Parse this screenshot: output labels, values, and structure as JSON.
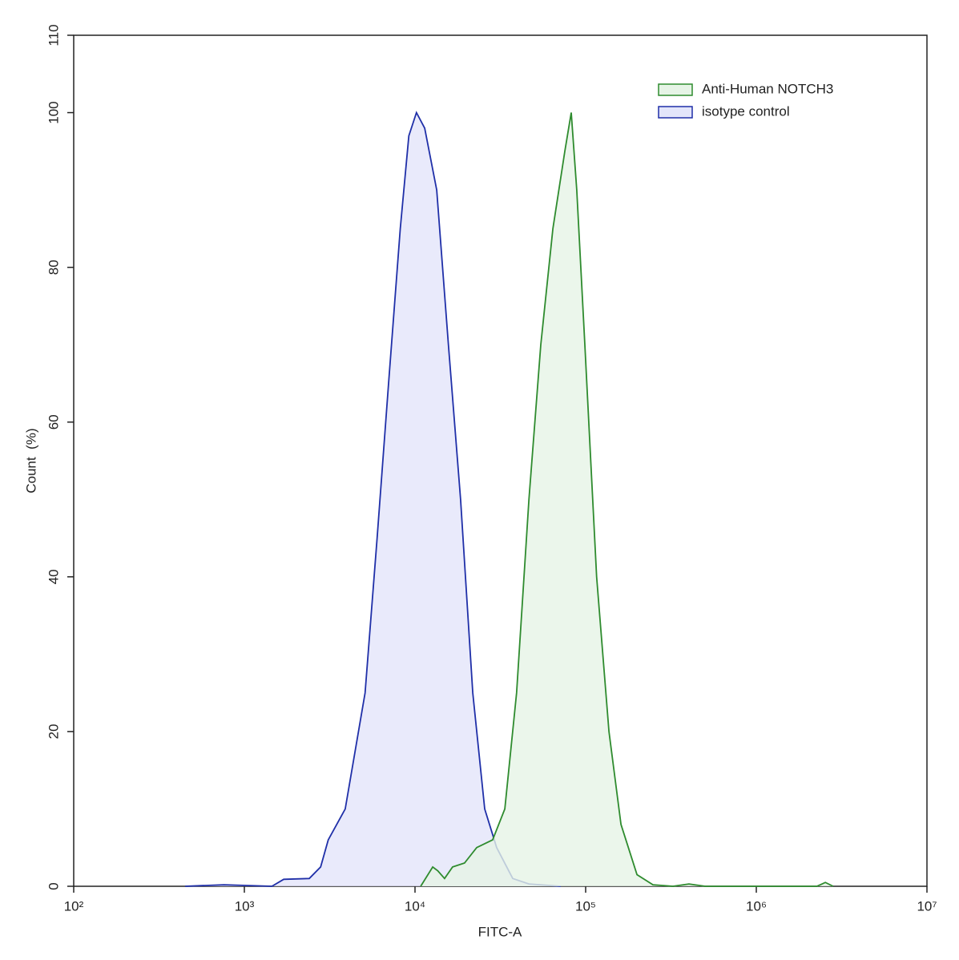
{
  "chart_data": {
    "type": "histogram-overlay",
    "x_label": "FITC-A",
    "y_label": "Count  (%)",
    "xscale": "log",
    "legend": "upper right",
    "xlim": [
      100,
      10000000
    ],
    "xticks": [
      {
        "value": 100,
        "label": "10²"
      },
      {
        "value": 1000,
        "label": "10³"
      },
      {
        "value": 10000,
        "label": "10⁴"
      },
      {
        "value": 100000,
        "label": "10⁵"
      },
      {
        "value": 1000000,
        "label": "10⁶"
      },
      {
        "value": 10000000,
        "label": "10⁷"
      }
    ],
    "ylim": [
      0,
      110
    ],
    "yticks": [
      0,
      20,
      40,
      60,
      80,
      100,
      110
    ],
    "series": [
      {
        "name": "Anti-Human NOTCH3",
        "color": "#2e8b2e",
        "fill": "#e6f4e6",
        "x": [
          10800,
          12700,
          13600,
          14900,
          16600,
          19500,
          23000,
          28500,
          33600,
          39400,
          46500,
          54600,
          64300,
          75500,
          82300,
          88700,
          98900,
          116000,
          137000,
          161000,
          200000,
          248000,
          325000,
          403000,
          501000,
          2270000,
          2540000,
          2820000
        ],
        "values": [
          0,
          2.5,
          2,
          1,
          2.5,
          3,
          5,
          6,
          10,
          25,
          50,
          70,
          85,
          95,
          100,
          90,
          70,
          40,
          20,
          8,
          1.5,
          0.2,
          0,
          0.3,
          0,
          0,
          0.5,
          0
        ]
      },
      {
        "name": "isotype control",
        "color": "#1f2fa8",
        "fill": "#e3e5fa",
        "x": [
          450,
          760,
          1450,
          1700,
          2400,
          2800,
          3100,
          3900,
          5100,
          6000,
          7000,
          8200,
          9200,
          10200,
          11400,
          13400,
          15700,
          18500,
          21800,
          25600,
          30100,
          37400,
          46500,
          71500
        ],
        "values": [
          0,
          0.2,
          0,
          0.9,
          1,
          2.5,
          6,
          10,
          25,
          45,
          65,
          85,
          97,
          100,
          98,
          90,
          70,
          50,
          25,
          10,
          5,
          1,
          0.3,
          0
        ]
      }
    ]
  }
}
